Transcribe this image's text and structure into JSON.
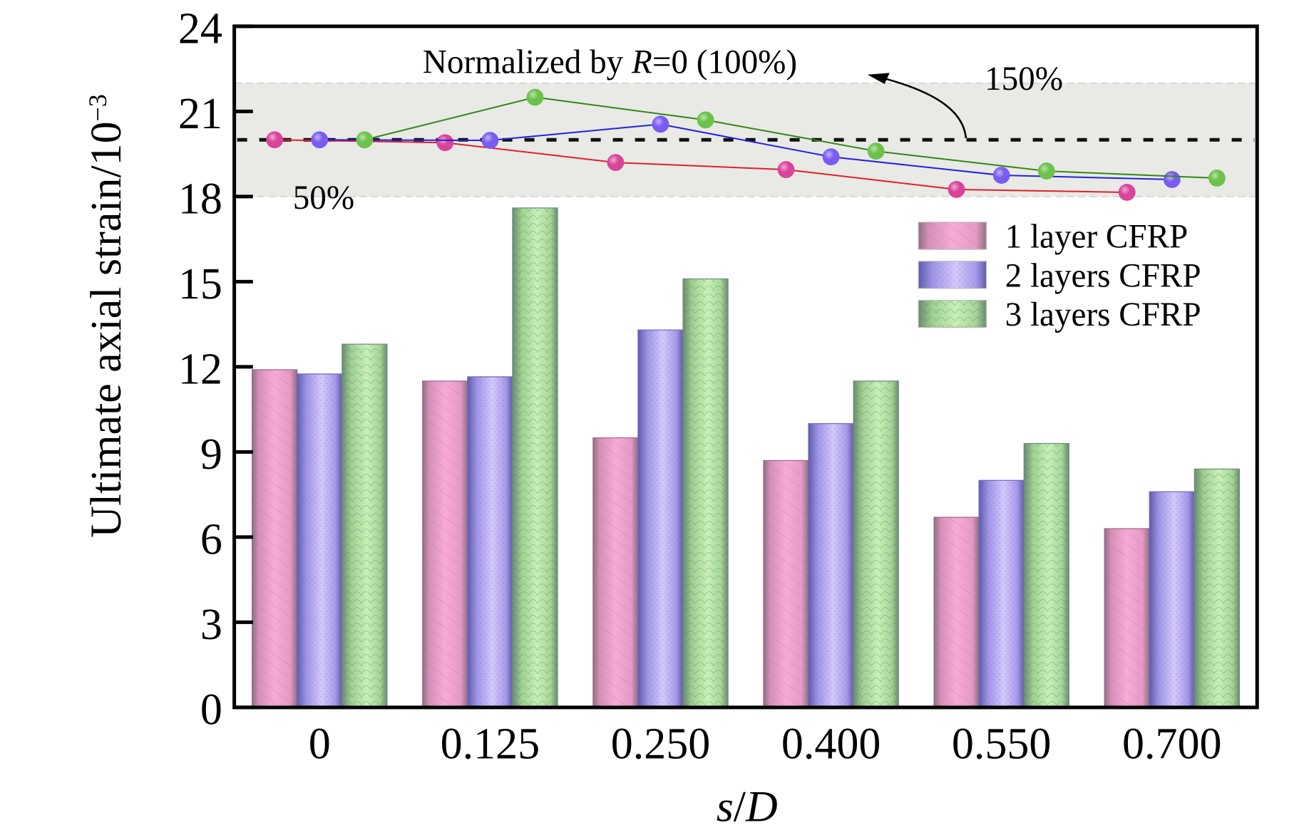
{
  "chart_data": {
    "type": "bar",
    "title": "",
    "xlabel": "s/D",
    "ylabel": "Ultimate axial strain/10",
    "ylabel_superscript": "−3",
    "categories": [
      "0",
      "0.125",
      "0.250",
      "0.400",
      "0.550",
      "0.700"
    ],
    "ylim": [
      0,
      24
    ],
    "yticks": [
      0,
      3,
      6,
      9,
      12,
      15,
      18,
      21,
      24
    ],
    "grid": false,
    "legend_position": "right",
    "series": [
      {
        "name": "1 layer CFRP",
        "color": "#f4a6d0",
        "edge": "#9a6a86",
        "values": [
          11.9,
          11.5,
          9.5,
          8.7,
          6.7,
          6.3
        ]
      },
      {
        "name": "2 layers CFRP",
        "color": "#c5b6f2",
        "edge": "#6f68b6",
        "values": [
          11.75,
          11.65,
          13.3,
          10.0,
          8.0,
          7.6
        ]
      },
      {
        "name": "3 layers CFRP",
        "color": "#b8e6a8",
        "edge": "#6f8f77",
        "values": [
          12.8,
          17.6,
          15.1,
          11.5,
          9.3,
          8.4
        ]
      }
    ],
    "normalized_overlay": {
      "description": "Normalized by R=0 (100%)",
      "band_range": [
        18,
        22
      ],
      "band_percent_range": [
        "50%",
        "150%"
      ],
      "reference_value": 20,
      "series": [
        {
          "name": "1 layer CFRP",
          "line_color": "#e0202a",
          "marker_color": "#d9449a",
          "values": [
            20.0,
            19.9,
            19.2,
            18.95,
            18.25,
            18.15
          ]
        },
        {
          "name": "2 layers CFRP",
          "line_color": "#2222e0",
          "marker_color": "#7a5cf0",
          "values": [
            20.0,
            19.98,
            20.55,
            19.4,
            18.75,
            18.6
          ]
        },
        {
          "name": "3 layers CFRP",
          "line_color": "#2f8a12",
          "marker_color": "#6cc24a",
          "values": [
            20.0,
            21.5,
            20.7,
            19.6,
            18.9,
            18.65
          ]
        }
      ]
    },
    "annotations": {
      "normalized_label_prefix": "Normalized by ",
      "normalized_label_var": "R",
      "normalized_label_suffix": "=0 (100%)",
      "upper_pct": "150%",
      "lower_pct": "50%"
    },
    "xlabel_var1": "s",
    "xlabel_sep": "/",
    "xlabel_var2": "D"
  }
}
